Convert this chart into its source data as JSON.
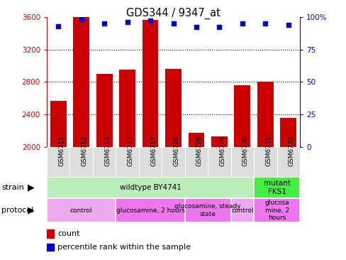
{
  "title": "GDS344 / 9347_at",
  "samples": [
    "GSM6711",
    "GSM6712",
    "GSM6713",
    "GSM6715",
    "GSM6717",
    "GSM6726",
    "GSM6728",
    "GSM6729",
    "GSM6730",
    "GSM6731",
    "GSM6732"
  ],
  "counts": [
    2570,
    3600,
    2900,
    2950,
    3560,
    2960,
    2170,
    2130,
    2760,
    2800,
    2360
  ],
  "percentiles": [
    93,
    98,
    95,
    96,
    97,
    95,
    92,
    92,
    95,
    95,
    94
  ],
  "ylim_left": [
    2000,
    3600
  ],
  "ylim_right": [
    0,
    100
  ],
  "yticks_left": [
    2000,
    2400,
    2800,
    3200,
    3600
  ],
  "yticks_right": [
    0,
    25,
    50,
    75,
    100
  ],
  "bar_color": "#cc0000",
  "dot_color": "#0000cc",
  "strain_groups": [
    {
      "label": "wildtype BY4741",
      "start": 0,
      "end": 9,
      "color": "#bbeebb"
    },
    {
      "label": "mutant\nFKS1",
      "start": 9,
      "end": 11,
      "color": "#44ee44"
    }
  ],
  "protocol_groups": [
    {
      "label": "control",
      "start": 0,
      "end": 3,
      "color": "#eeaaee"
    },
    {
      "label": "glucosamine, 2 hours",
      "start": 3,
      "end": 6,
      "color": "#ee77ee"
    },
    {
      "label": "glucosamine, steady\nstate",
      "start": 6,
      "end": 8,
      "color": "#ee77ee"
    },
    {
      "label": "control",
      "start": 8,
      "end": 9,
      "color": "#eeaaee"
    },
    {
      "label": "glucosa\nmine, 2\nhours",
      "start": 9,
      "end": 11,
      "color": "#ee77ee"
    }
  ],
  "legend_count_color": "#cc0000",
  "legend_dot_color": "#0000cc",
  "axis_left_color": "#cc0000",
  "axis_right_color": "#0000cc",
  "grid_lines": [
    3200,
    2800,
    2400
  ],
  "bg_color": "#ffffff"
}
